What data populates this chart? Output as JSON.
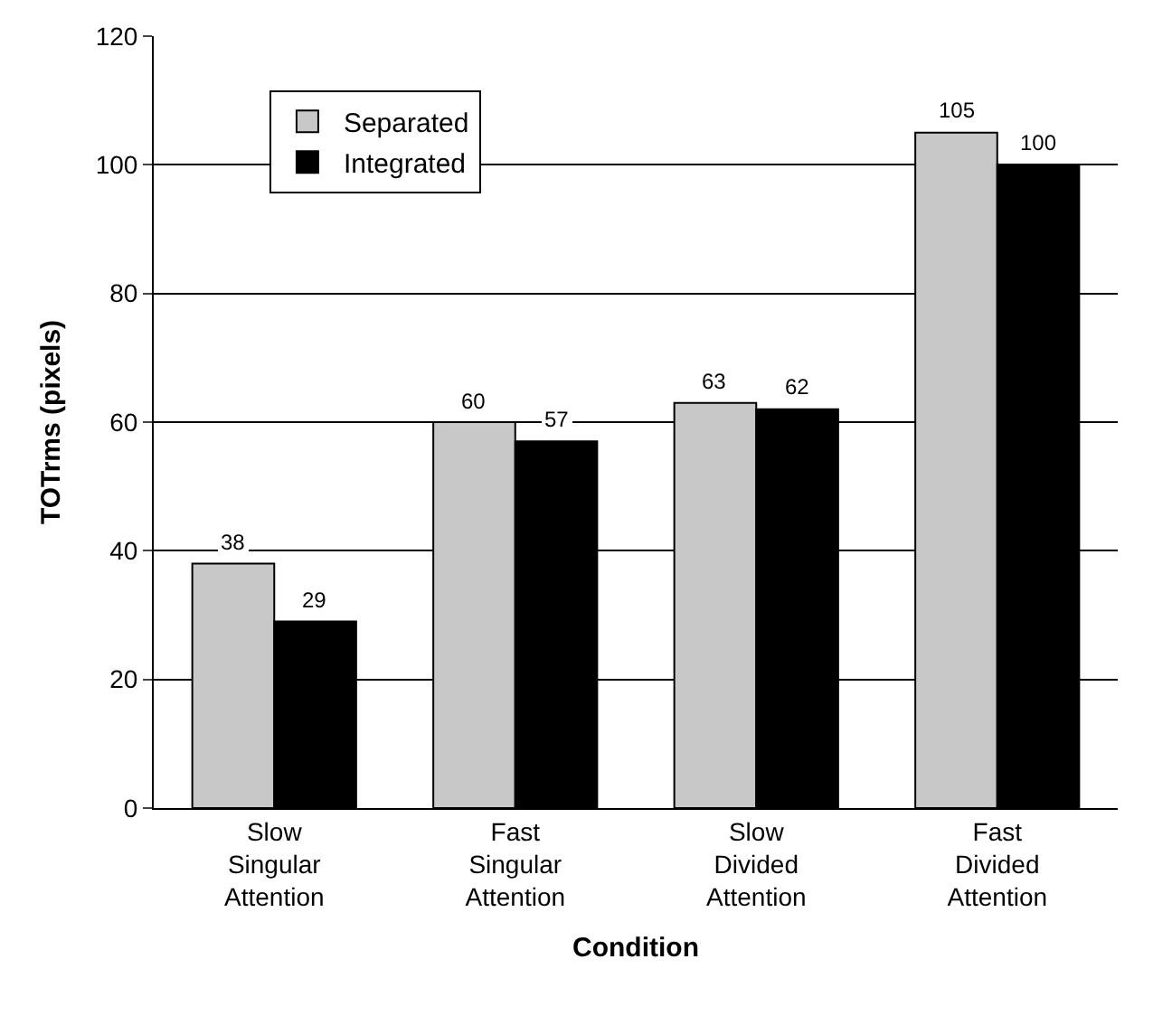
{
  "chart_data": {
    "type": "bar",
    "xlabel": "Condition",
    "ylabel": "TOTrms (pixels)",
    "categories": [
      "Slow\nSingular\nAttention",
      "Fast\nSingular\nAttention",
      "Slow\nDivided\nAttention",
      "Fast\nDivided\nAttention"
    ],
    "series": [
      {
        "name": "Separated",
        "color": "#c8c8c8",
        "values": [
          38,
          60,
          63,
          105
        ]
      },
      {
        "name": "Integrated",
        "color": "#000000",
        "values": [
          29,
          57,
          62,
          100
        ]
      }
    ],
    "ylim": [
      0,
      120
    ],
    "yticks": [
      0,
      20,
      40,
      60,
      80,
      100,
      120
    ],
    "grid": "y",
    "legend": "top left",
    "data_labels": true
  }
}
